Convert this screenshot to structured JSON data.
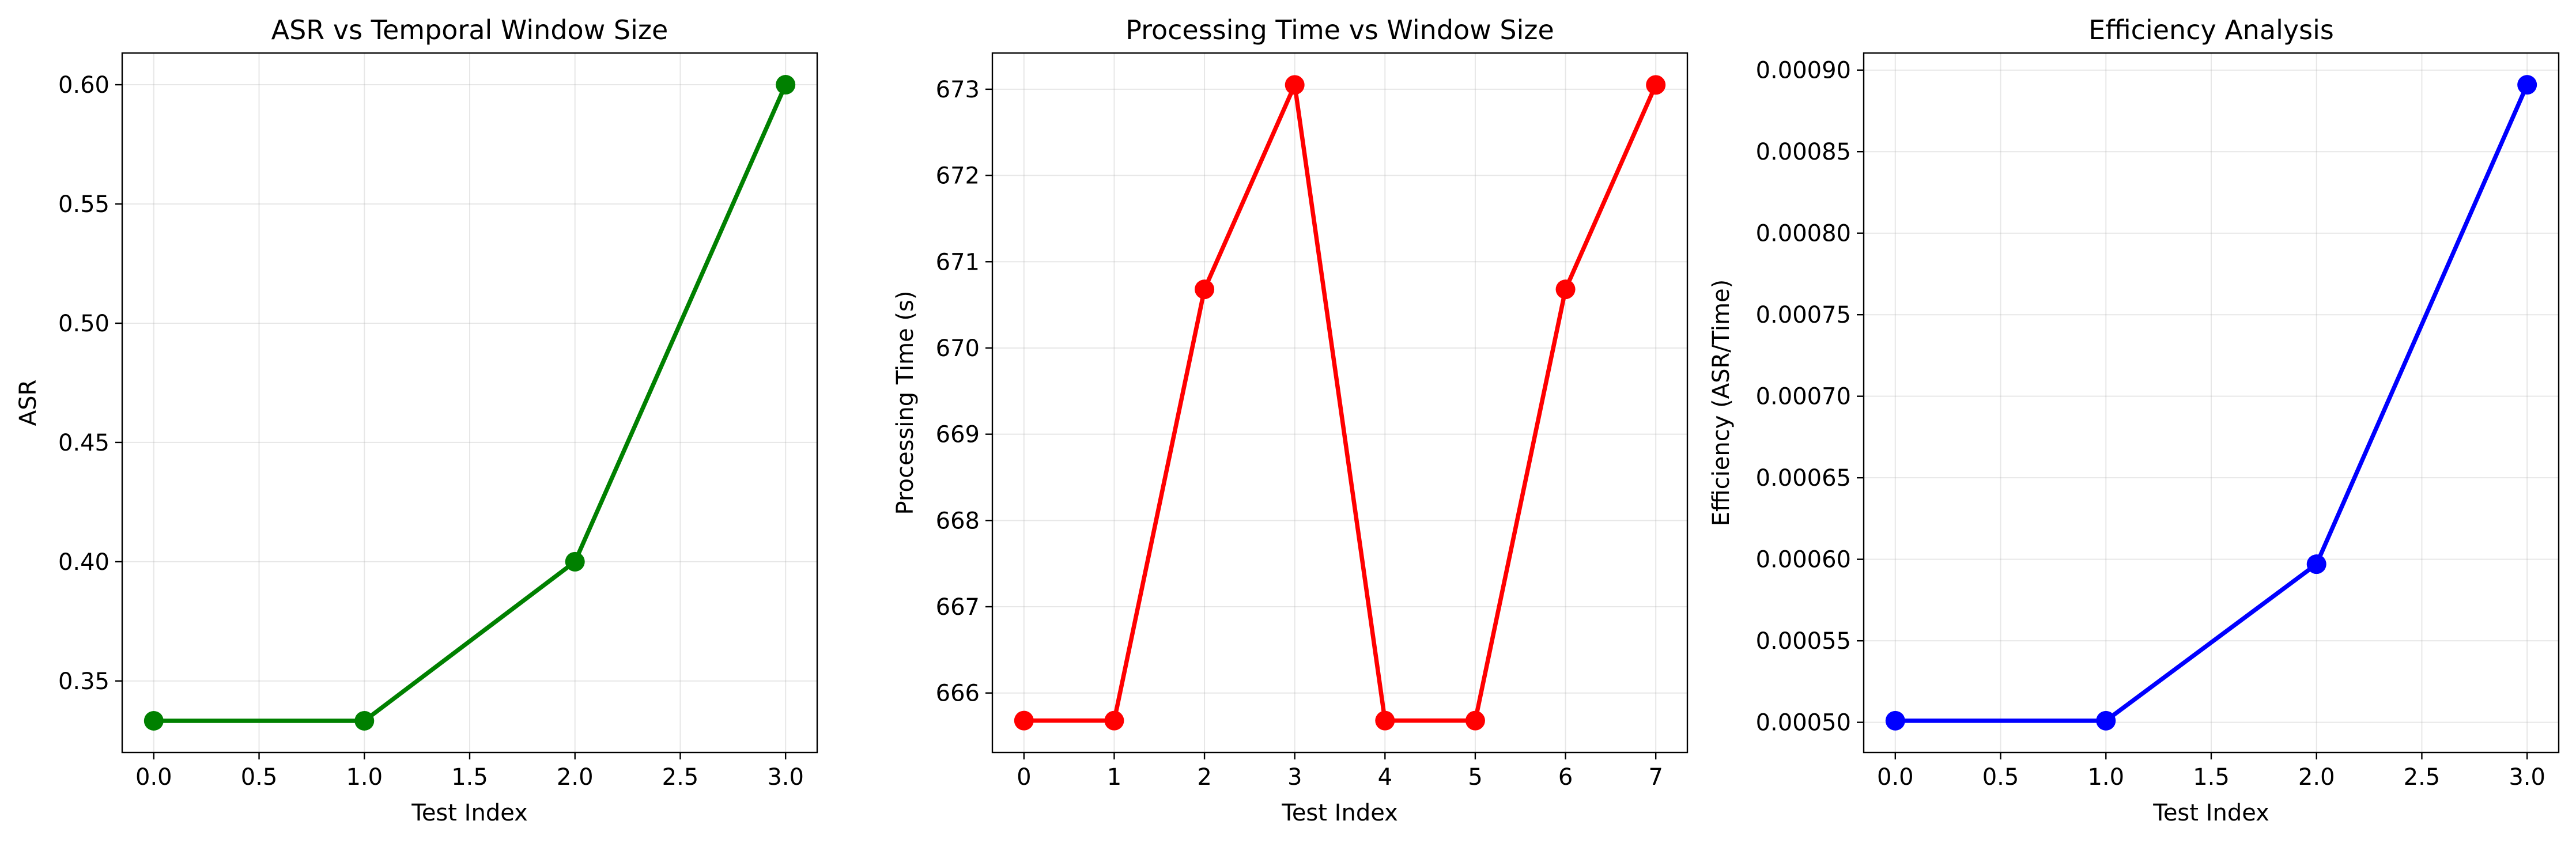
{
  "chart_data": [
    {
      "type": "line",
      "title": "ASR vs Temporal Window Size",
      "xlabel": "Test Index",
      "ylabel": "ASR",
      "color": "#008000",
      "x": [
        0,
        1,
        2,
        3
      ],
      "y": [
        0.3333,
        0.3333,
        0.4,
        0.6
      ],
      "xlim": [
        -0.15,
        3.15
      ],
      "ylim": [
        0.32,
        0.6133
      ],
      "xticks": [
        0.0,
        0.5,
        1.0,
        1.5,
        2.0,
        2.5,
        3.0
      ],
      "xtick_labels": [
        "0.0",
        "0.5",
        "1.0",
        "1.5",
        "2.0",
        "2.5",
        "3.0"
      ],
      "yticks": [
        0.35,
        0.4,
        0.45,
        0.5,
        0.55,
        0.6
      ],
      "ytick_labels": [
        "0.35",
        "0.40",
        "0.45",
        "0.50",
        "0.55",
        "0.60"
      ],
      "grid": true,
      "marker": "circle"
    },
    {
      "type": "line",
      "title": "Processing Time vs Window Size",
      "xlabel": "Test Index",
      "ylabel": "Processing Time (s)",
      "color": "#ff0000",
      "x": [
        0,
        1,
        2,
        3,
        4,
        5,
        6,
        7
      ],
      "y": [
        665.68,
        665.68,
        670.68,
        673.05,
        665.68,
        665.68,
        670.68,
        673.05
      ],
      "xlim": [
        -0.35,
        7.35
      ],
      "ylim": [
        665.31,
        673.42
      ],
      "xticks": [
        0,
        1,
        2,
        3,
        4,
        5,
        6,
        7
      ],
      "xtick_labels": [
        "0",
        "1",
        "2",
        "3",
        "4",
        "5",
        "6",
        "7"
      ],
      "yticks": [
        666,
        667,
        668,
        669,
        670,
        671,
        672,
        673
      ],
      "ytick_labels": [
        "666",
        "667",
        "668",
        "669",
        "670",
        "671",
        "672",
        "673"
      ],
      "grid": true,
      "marker": "circle"
    },
    {
      "type": "line",
      "title": "Efficiency Analysis",
      "xlabel": "Test Index",
      "ylabel": "Efficiency (ASR/Time)",
      "color": "#0000ff",
      "x": [
        0,
        1,
        2,
        3
      ],
      "y": [
        0.000501,
        0.000501,
        0.000597,
        0.000891
      ],
      "xlim": [
        -0.15,
        3.15
      ],
      "ylim": [
        0.0004815,
        0.0009105
      ],
      "xticks": [
        0.0,
        0.5,
        1.0,
        1.5,
        2.0,
        2.5,
        3.0
      ],
      "xtick_labels": [
        "0.0",
        "0.5",
        "1.0",
        "1.5",
        "2.0",
        "2.5",
        "3.0"
      ],
      "yticks": [
        0.0005,
        0.00055,
        0.0006,
        0.00065,
        0.0007,
        0.00075,
        0.0008,
        0.00085,
        0.0009
      ],
      "ytick_labels": [
        "0.00050",
        "0.00055",
        "0.00060",
        "0.00065",
        "0.00070",
        "0.00075",
        "0.00080",
        "0.00085",
        "0.00090"
      ],
      "grid": true,
      "marker": "circle"
    }
  ]
}
